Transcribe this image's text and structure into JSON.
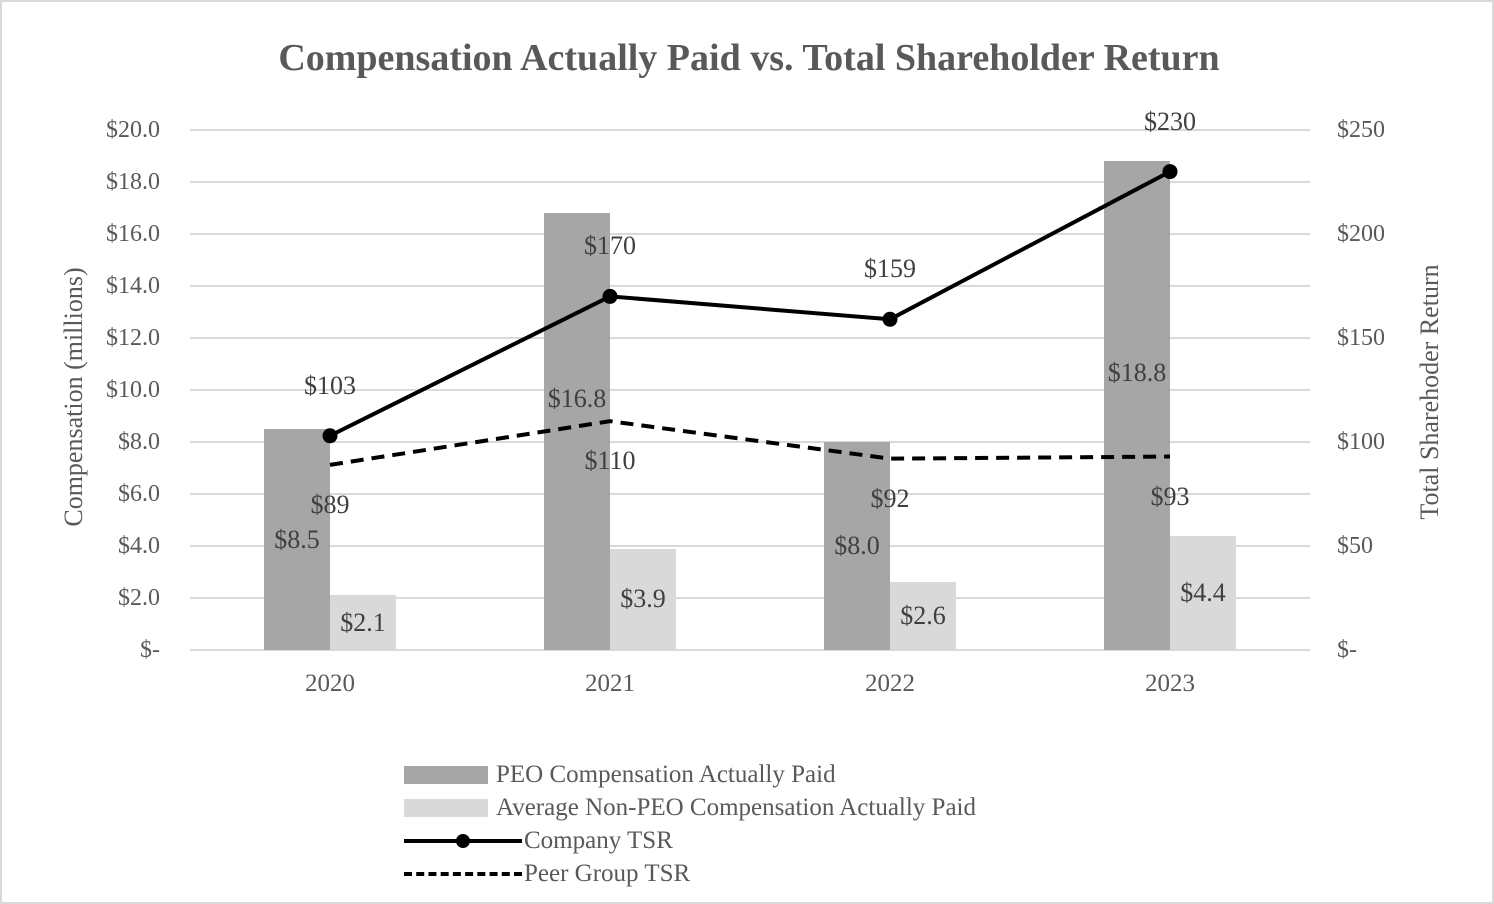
{
  "title": "Compensation Actually Paid vs. Total Shareholder Return",
  "chart_data": {
    "type": "bar",
    "subtype": "combo-bar-line-dual-axis",
    "title": "Compensation Actually Paid vs. Total Shareholder Return",
    "categories": [
      "2020",
      "2021",
      "2022",
      "2023"
    ],
    "series": [
      {
        "name": "PEO Compensation Actually Paid",
        "slug": "peo-compensation",
        "type": "bar",
        "axis": "left",
        "values": [
          8.5,
          16.8,
          8.0,
          18.8
        ],
        "labels": [
          "$8.5",
          "$16.8",
          "$8.0",
          "$18.8"
        ],
        "color": "#a6a6a6"
      },
      {
        "name": "Average Non-PEO Compensation Actually Paid",
        "slug": "avg-non-peo-compensation",
        "type": "bar",
        "axis": "left",
        "values": [
          2.1,
          3.9,
          2.6,
          4.4
        ],
        "labels": [
          "$2.1",
          "$3.9",
          "$2.6",
          "$4.4"
        ],
        "color": "#d9d9d9"
      },
      {
        "name": "Company TSR",
        "slug": "company-tsr",
        "type": "line",
        "line_style": "solid",
        "marker": "circle",
        "axis": "right",
        "values": [
          103,
          170,
          159,
          230
        ],
        "labels": [
          "$103",
          "$170",
          "$159",
          "$230"
        ],
        "color": "#000000"
      },
      {
        "name": "Peer Group TSR",
        "slug": "peer-group-tsr",
        "type": "line",
        "line_style": "dashed",
        "marker": "none",
        "axis": "right",
        "values": [
          89,
          110,
          92,
          93
        ],
        "labels": [
          "$89",
          "$110",
          "$92",
          "$93"
        ],
        "color": "#000000"
      }
    ],
    "left_axis": {
      "title": "Compensation (millions)",
      "min": 0,
      "max": 20,
      "ticks": [
        "$20.0",
        "$18.0",
        "$16.0",
        "$14.0",
        "$12.0",
        "$10.0",
        "$8.0",
        "$6.0",
        "$4.0",
        "$2.0",
        "$-"
      ]
    },
    "right_axis": {
      "title": "Total Sharehoder Return",
      "min": 0,
      "max": 250,
      "ticks": [
        "$250",
        "$200",
        "$150",
        "$100",
        "$50",
        "$-"
      ]
    },
    "grid": true,
    "legend_position": "bottom",
    "legend": [
      "PEO Compensation Actually Paid",
      "Average Non-PEO Compensation Actually Paid",
      "Company TSR",
      "Peer Group TSR"
    ]
  },
  "colors": {
    "background": "#ffffff",
    "border": "#d9d9d9",
    "gridline": "#d9d9d9",
    "axis_text": "#595959",
    "data_label_text": "#3f3f3f",
    "bar_dark": "#a6a6a6",
    "bar_light": "#d9d9d9",
    "line": "#000000"
  }
}
